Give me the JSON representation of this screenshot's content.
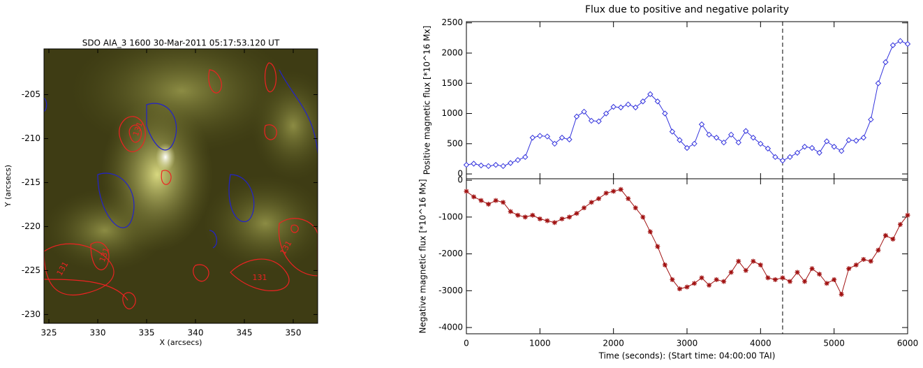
{
  "chart_data": [
    {
      "type": "image",
      "title": "SDO AIA_3 1600 30-Mar-2011 05:17:53.120 UT",
      "xlabel": "X (arcsecs)",
      "ylabel": "Y (arcsecs)",
      "xlim": [
        324.5,
        352.5
      ],
      "ylim": [
        -231,
        -199.8
      ],
      "xticks": [
        325,
        330,
        335,
        340,
        345,
        350
      ],
      "yticks": [
        -205,
        -210,
        -215,
        -220,
        -225,
        -230
      ],
      "annotations": [
        "131",
        "131",
        "131",
        "131",
        "131"
      ]
    },
    {
      "type": "line",
      "title": "Flux due to positive and negative polarity",
      "xlabel": "Time (seconds): (Start time: 04:00:00 TAI)",
      "x": [
        0,
        100,
        200,
        300,
        400,
        500,
        600,
        700,
        800,
        900,
        1000,
        1100,
        1200,
        1300,
        1400,
        1500,
        1600,
        1700,
        1800,
        1900,
        2000,
        2100,
        2200,
        2300,
        2400,
        2500,
        2600,
        2700,
        2800,
        2900,
        3000,
        3100,
        3200,
        3300,
        3400,
        3500,
        3600,
        3700,
        3800,
        3900,
        4000,
        4100,
        4200,
        4300,
        4400,
        4500,
        4600,
        4700,
        4800,
        4900,
        5000,
        5100,
        5200,
        5300,
        5400,
        5500,
        5600,
        5700,
        5800,
        5900,
        6000
      ],
      "xlim": [
        0,
        6000
      ],
      "xticks": [
        0,
        1000,
        2000,
        3000,
        4000,
        5000,
        6000
      ],
      "vline": 4300,
      "panels": [
        {
          "ylabel": "Positive magnetic flux [*10^16 Mx]",
          "ylim": [
            -80,
            2520
          ],
          "yticks": [
            0,
            500,
            1000,
            1500,
            2000,
            2500
          ],
          "series": [
            {
              "color": "#3333dd",
              "marker": "diamond",
              "values": [
                150,
                170,
                140,
                130,
                150,
                130,
                180,
                230,
                280,
                600,
                630,
                620,
                500,
                600,
                570,
                950,
                1030,
                880,
                870,
                1000,
                1110,
                1100,
                1150,
                1100,
                1200,
                1320,
                1200,
                1000,
                700,
                560,
                430,
                500,
                820,
                650,
                600,
                520,
                650,
                520,
                710,
                600,
                500,
                420,
                280,
                220,
                280,
                350,
                450,
                430,
                350,
                540,
                450,
                380,
                560,
                550,
                600,
                900,
                1500,
                1850,
                2130,
                2200,
                2150
              ]
            }
          ]
        },
        {
          "ylabel": "Negative magnetic flux [*10^16 Mx]",
          "ylim": [
            -4170,
            40
          ],
          "yticks": [
            0,
            -1000,
            -2000,
            -3000,
            -4000
          ],
          "series": [
            {
              "color": "#a01010",
              "marker": "asterisk",
              "values": [
                -300,
                -450,
                -550,
                -650,
                -550,
                -600,
                -850,
                -950,
                -1000,
                -950,
                -1050,
                -1100,
                -1150,
                -1050,
                -1000,
                -900,
                -750,
                -600,
                -500,
                -350,
                -300,
                -250,
                -500,
                -750,
                -1000,
                -1400,
                -1800,
                -2300,
                -2700,
                -2950,
                -2900,
                -2800,
                -2650,
                -2850,
                -2700,
                -2750,
                -2500,
                -2200,
                -2450,
                -2200,
                -2300,
                -2650,
                -2700,
                -2650,
                -2750,
                -2500,
                -2750,
                -2400,
                -2550,
                -2800,
                -2700,
                -3100,
                -2400,
                -2300,
                -2150,
                -2200,
                -1900,
                -1500,
                -1600,
                -1200,
                -950
              ]
            }
          ]
        }
      ]
    }
  ]
}
